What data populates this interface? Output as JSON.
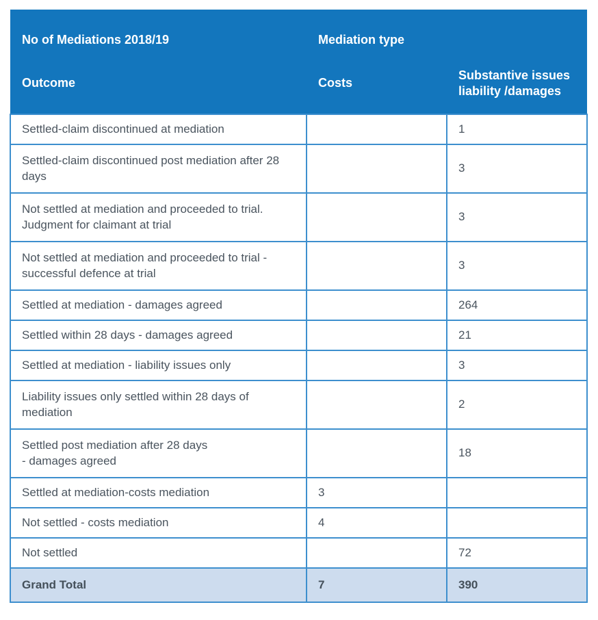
{
  "colors": {
    "header_bg": "#1376bd",
    "header_text": "#ffffff",
    "cell_border": "#3d8fce",
    "body_text": "#4a545e",
    "total_row_bg": "#cddcee"
  },
  "table": {
    "header": {
      "title": "No of Mediations 2018/19",
      "group_label": "Mediation type",
      "columns": {
        "outcome": "Outcome",
        "costs": "Costs",
        "substantive": "Substantive issues liability /damages"
      }
    },
    "rows": [
      {
        "outcome": "Settled-claim discontinued at mediation",
        "costs": "",
        "substantive": "1"
      },
      {
        "outcome": "Settled-claim discontinued post mediation after 28 days",
        "costs": "",
        "substantive": "3"
      },
      {
        "outcome": "Not settled at mediation and proceeded to trial. Judgment for claimant at trial",
        "costs": "",
        "substantive": "3"
      },
      {
        "outcome": "Not settled at mediation and proceeded to trial - successful defence at trial",
        "costs": "",
        "substantive": "3"
      },
      {
        "outcome": "Settled at mediation - damages agreed",
        "costs": "",
        "substantive": "264"
      },
      {
        "outcome": "Settled within 28 days - damages agreed",
        "costs": "",
        "substantive": "21"
      },
      {
        "outcome": "Settled at mediation - liability issues only",
        "costs": "",
        "substantive": "3"
      },
      {
        "outcome": "Liability issues only settled within 28 days of mediation",
        "costs": "",
        "substantive": "2"
      },
      {
        "outcome": "Settled post mediation after 28 days\n- damages agreed",
        "costs": "",
        "substantive": "18"
      },
      {
        "outcome": "Settled at mediation-costs mediation",
        "costs": "3",
        "substantive": ""
      },
      {
        "outcome": "Not settled - costs mediation",
        "costs": "4",
        "substantive": ""
      },
      {
        "outcome": "Not settled",
        "costs": "",
        "substantive": "72"
      }
    ],
    "grand_total": {
      "label": "Grand Total",
      "costs": "7",
      "substantive": "390"
    }
  }
}
